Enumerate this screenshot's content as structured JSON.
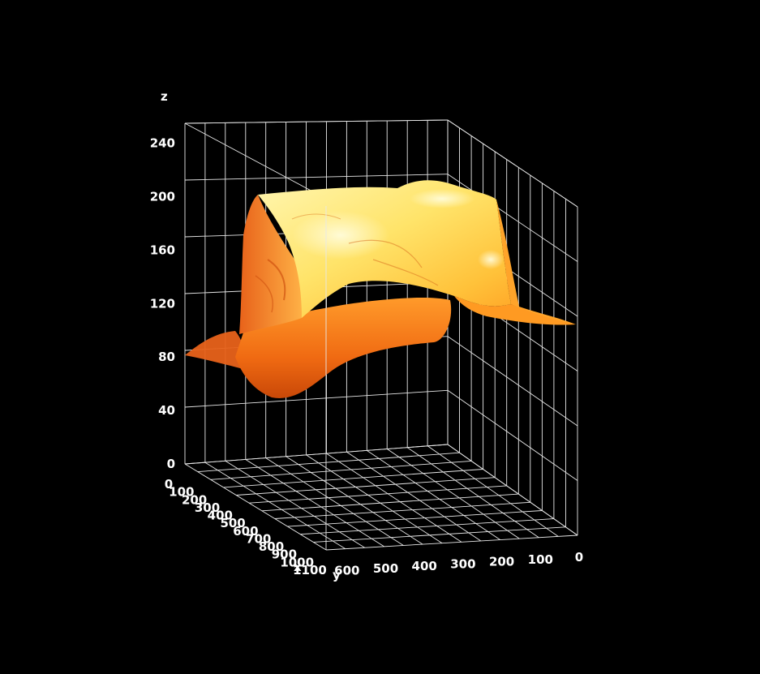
{
  "chart_data": {
    "type": "surface3d",
    "title": "",
    "xlabel": "x",
    "ylabel": "y",
    "zlabel": "z",
    "x_ticks": [
      "0",
      "100",
      "200",
      "300",
      "400",
      "500",
      "600",
      "700",
      "800",
      "900",
      "1000",
      "1100"
    ],
    "y_ticks": [
      "600",
      "500",
      "400",
      "300",
      "200",
      "100",
      "0"
    ],
    "z_ticks": [
      "0",
      "40",
      "80",
      "120",
      "160",
      "200",
      "240"
    ],
    "xlim": [
      0,
      1100
    ],
    "ylim": [
      0,
      650
    ],
    "zlim": [
      0,
      255
    ],
    "grid": true,
    "colors": {
      "background": "#000000",
      "grid": "#e8e8e8",
      "surface_low": "#e0500a",
      "surface_mid": "#ff9a1c",
      "surface_high": "#fff29a"
    }
  }
}
